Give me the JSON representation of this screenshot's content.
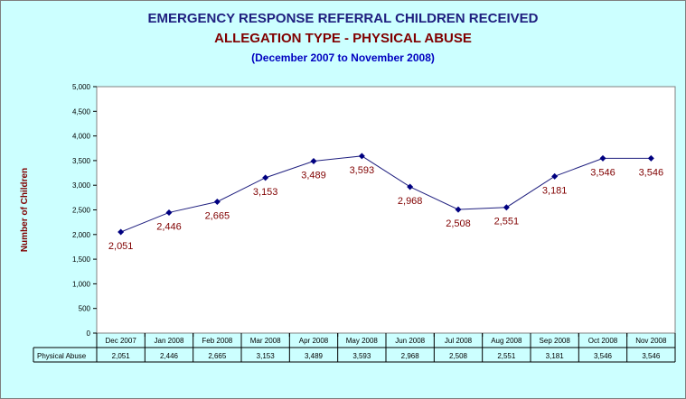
{
  "header": {
    "title": "EMERGENCY RESPONSE REFERRAL CHILDREN RECEIVED",
    "subtitle": "ALLEGATION TYPE - PHYSICAL ABUSE",
    "period": "(December 2007 to November 2008)"
  },
  "chart_data": {
    "type": "line",
    "title": "EMERGENCY RESPONSE REFERRAL CHILDREN RECEIVED",
    "ylabel": "Number of Children",
    "xlabel": "",
    "ylim": [
      0,
      5000
    ],
    "yticks": [
      "0",
      "500",
      "1,000",
      "1,500",
      "2,000",
      "2,500",
      "3,000",
      "3,500",
      "4,000",
      "4,500",
      "5,000"
    ],
    "categories": [
      "Dec 2007",
      "Jan 2008",
      "Feb 2008",
      "Mar 2008",
      "Apr 2008",
      "May 2008",
      "Jun 2008",
      "Jul 2008",
      "Aug 2008",
      "Sep 2008",
      "Oct 2008",
      "Nov 2008"
    ],
    "series": [
      {
        "name": "Physical Abuse",
        "values": [
          2051,
          2446,
          2665,
          3153,
          3489,
          3593,
          2968,
          2508,
          2551,
          3181,
          3546,
          3546
        ],
        "labels": [
          "2,051",
          "2,446",
          "2,665",
          "3,153",
          "3,489",
          "3,593",
          "2,968",
          "2,508",
          "2,551",
          "3,181",
          "3,546",
          "3,546"
        ]
      }
    ],
    "grid": false,
    "legend": "data-table",
    "colors": {
      "plot_background": "#ffffff",
      "chart_background": "#ccffff",
      "line": "#1f1f7f",
      "marker": "#000080",
      "data_label": "#800000"
    }
  }
}
